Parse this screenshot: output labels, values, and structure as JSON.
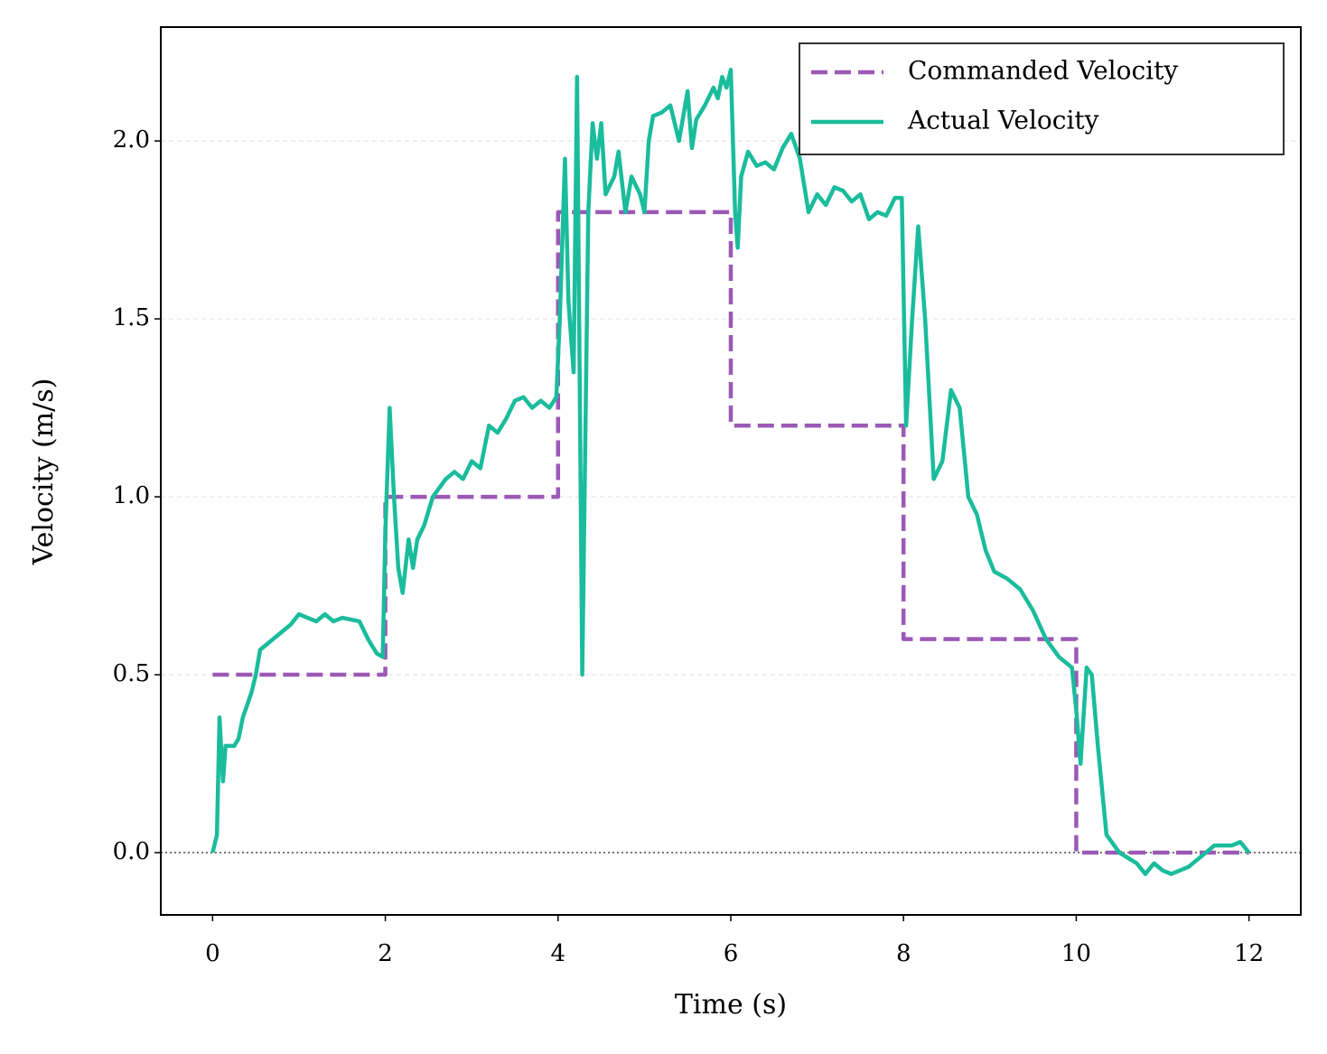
{
  "chart_data": {
    "type": "line",
    "xlabel": "Time (s)",
    "ylabel": "Velocity (m/s)",
    "xlim": [
      -0.6,
      12.6
    ],
    "ylim": [
      -0.175,
      2.32
    ],
    "xticks": [
      0,
      2,
      4,
      6,
      8,
      10,
      12
    ],
    "yticks": [
      {
        "value": 0,
        "label": "0.0"
      },
      0.5,
      {
        "value": 1,
        "label": "1.0"
      },
      1.5,
      {
        "value": 2,
        "label": "2.0"
      }
    ],
    "grid": true,
    "legend": "upper right",
    "hline": 0,
    "series": [
      {
        "name": "Commanded Velocity",
        "color": "#9b59b6",
        "dashed": true,
        "x": [
          0,
          2,
          2,
          4,
          4,
          6,
          6,
          8,
          8,
          10,
          10,
          12
        ],
        "values": [
          0.5,
          0.5,
          1,
          1,
          1.8,
          1.8,
          1.2,
          1.2,
          0.6,
          0.6,
          0,
          0
        ]
      },
      {
        "name": "Actual Velocity",
        "color": "#1abc9c",
        "dashed": false,
        "x": [
          0,
          0.05,
          0.08,
          0.12,
          0.15,
          0.25,
          0.3,
          0.35,
          0.45,
          0.5,
          0.55,
          0.7,
          0.9,
          1.0,
          1.1,
          1.2,
          1.3,
          1.4,
          1.5,
          1.7,
          1.8,
          1.9,
          1.97,
          2.0,
          2.05,
          2.1,
          2.15,
          2.2,
          2.27,
          2.32,
          2.37,
          2.45,
          2.55,
          2.7,
          2.8,
          2.9,
          3.0,
          3.1,
          3.2,
          3.3,
          3.4,
          3.5,
          3.6,
          3.7,
          3.8,
          3.9,
          3.98,
          4.02,
          4.08,
          4.12,
          4.18,
          4.22,
          4.28,
          4.35,
          4.4,
          4.45,
          4.5,
          4.55,
          4.65,
          4.7,
          4.78,
          4.85,
          4.95,
          5.0,
          5.05,
          5.1,
          5.2,
          5.3,
          5.4,
          5.5,
          5.55,
          5.6,
          5.7,
          5.8,
          5.85,
          5.9,
          5.95,
          6.0,
          6.05,
          6.08,
          6.12,
          6.2,
          6.3,
          6.4,
          6.5,
          6.6,
          6.7,
          6.8,
          6.9,
          7.0,
          7.1,
          7.2,
          7.3,
          7.4,
          7.5,
          7.6,
          7.7,
          7.8,
          7.9,
          7.98,
          8.03,
          8.1,
          8.17,
          8.25,
          8.35,
          8.45,
          8.55,
          8.65,
          8.75,
          8.85,
          8.95,
          9.05,
          9.2,
          9.35,
          9.5,
          9.65,
          9.8,
          9.95,
          10.0,
          10.05,
          10.12,
          10.18,
          10.25,
          10.35,
          10.5,
          10.7,
          10.8,
          10.9,
          11.0,
          11.1,
          11.3,
          11.5,
          11.6,
          11.8,
          11.9,
          12.0
        ],
        "values": [
          0,
          0.05,
          0.38,
          0.2,
          0.3,
          0.3,
          0.32,
          0.38,
          0.45,
          0.5,
          0.57,
          0.6,
          0.64,
          0.67,
          0.66,
          0.65,
          0.67,
          0.65,
          0.66,
          0.65,
          0.6,
          0.56,
          0.55,
          0.9,
          1.25,
          1.0,
          0.8,
          0.73,
          0.88,
          0.8,
          0.88,
          0.92,
          1.0,
          1.05,
          1.07,
          1.05,
          1.1,
          1.08,
          1.2,
          1.18,
          1.22,
          1.27,
          1.28,
          1.25,
          1.27,
          1.25,
          1.28,
          1.5,
          1.95,
          1.55,
          1.35,
          2.18,
          0.5,
          1.8,
          2.05,
          1.95,
          2.05,
          1.85,
          1.9,
          1.97,
          1.8,
          1.9,
          1.85,
          1.8,
          2.0,
          2.07,
          2.08,
          2.1,
          2.0,
          2.14,
          1.98,
          2.06,
          2.1,
          2.15,
          2.12,
          2.18,
          2.15,
          2.2,
          1.8,
          1.7,
          1.9,
          1.97,
          1.93,
          1.94,
          1.92,
          1.98,
          2.02,
          1.95,
          1.8,
          1.85,
          1.82,
          1.87,
          1.86,
          1.83,
          1.85,
          1.78,
          1.8,
          1.79,
          1.84,
          1.84,
          1.2,
          1.5,
          1.76,
          1.5,
          1.05,
          1.1,
          1.3,
          1.25,
          1.0,
          0.95,
          0.85,
          0.79,
          0.77,
          0.74,
          0.68,
          0.6,
          0.55,
          0.52,
          0.4,
          0.25,
          0.52,
          0.5,
          0.3,
          0.05,
          0,
          -0.03,
          -0.06,
          -0.03,
          -0.05,
          -0.06,
          -0.04,
          0,
          0.02,
          0.02,
          0.03,
          0
        ]
      }
    ]
  }
}
